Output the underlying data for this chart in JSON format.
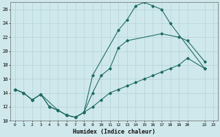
{
  "xlabel": "Humidex (Indice chaleur)",
  "xlim": [
    -0.5,
    23.5
  ],
  "ylim": [
    10,
    27
  ],
  "xticks": [
    0,
    1,
    2,
    3,
    4,
    5,
    6,
    7,
    8,
    9,
    10,
    11,
    12,
    13,
    14,
    15,
    16,
    17,
    18,
    19,
    20,
    22,
    23
  ],
  "xtick_labels": [
    "0",
    "1",
    "2",
    "3",
    "4",
    "5",
    "6",
    "7",
    "8",
    "9",
    "10",
    "11",
    "12",
    "13",
    "14",
    "15",
    "16",
    "17",
    "18",
    "19",
    "20",
    "22",
    "23"
  ],
  "yticks": [
    10,
    12,
    14,
    16,
    18,
    20,
    22,
    24,
    26
  ],
  "background_color": "#cfe8ec",
  "grid_color": "#aacdd4",
  "line_color": "#1e6b62",
  "line1_x": [
    0,
    1,
    2,
    3,
    4,
    5,
    6,
    7,
    8,
    9,
    12,
    13,
    14,
    15,
    16,
    17,
    18,
    22
  ],
  "line1_y": [
    14.5,
    14.0,
    13.0,
    13.8,
    12.0,
    11.5,
    10.8,
    10.5,
    11.2,
    16.5,
    23.0,
    24.5,
    26.5,
    27.0,
    26.5,
    26.0,
    24.0,
    17.5
  ],
  "line2_x": [
    0,
    1,
    2,
    3,
    4,
    5,
    6,
    7,
    8,
    9,
    10,
    11,
    12,
    13,
    17,
    19,
    20,
    22
  ],
  "line2_y": [
    14.5,
    14.0,
    13.0,
    13.8,
    12.0,
    11.5,
    10.8,
    10.5,
    11.2,
    14.0,
    16.5,
    17.5,
    20.5,
    21.5,
    22.5,
    22.0,
    21.5,
    18.5
  ],
  "line3_x": [
    0,
    1,
    2,
    3,
    5,
    6,
    7,
    8,
    9,
    10,
    11,
    12,
    13,
    14,
    15,
    16,
    17,
    18,
    19,
    20,
    22
  ],
  "line3_y": [
    14.5,
    14.0,
    13.0,
    13.8,
    11.5,
    10.8,
    10.5,
    11.2,
    12.0,
    13.0,
    14.0,
    14.5,
    15.0,
    15.5,
    16.0,
    16.5,
    17.0,
    17.5,
    18.0,
    19.0,
    17.5
  ],
  "figsize": [
    3.2,
    2.0
  ],
  "dpi": 100
}
